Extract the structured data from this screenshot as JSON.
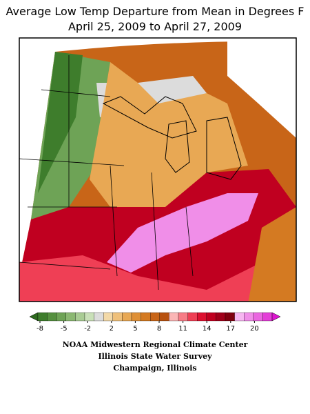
{
  "title": [
    "Average Low Temp Departure from Mean in Degrees F",
    "April 25, 2009 to April 27, 2009"
  ],
  "legend": {
    "ticks": [
      -8,
      -5,
      -2,
      2,
      5,
      8,
      11,
      14,
      17,
      20
    ],
    "colors": [
      "#2e6b1f",
      "#3e7d2c",
      "#55903f",
      "#6ea356",
      "#8bb872",
      "#a9cc94",
      "#c9e0b8",
      "#dcdcdc",
      "#f3d9a8",
      "#efc07a",
      "#e8a854",
      "#df9036",
      "#d47a22",
      "#c86518",
      "#b85210",
      "#fbb6b6",
      "#f77c86",
      "#ef3f55",
      "#dd1030",
      "#c00020",
      "#a0001a",
      "#80000f",
      "#f6b6f0",
      "#f08ee8",
      "#ea66e0",
      "#e43ed8",
      "#dd16d0"
    ]
  },
  "footer": [
    "NOAA Midwestern Regional Climate Center",
    "Illinois State Water Survey",
    "Champaign, Illinois"
  ]
}
